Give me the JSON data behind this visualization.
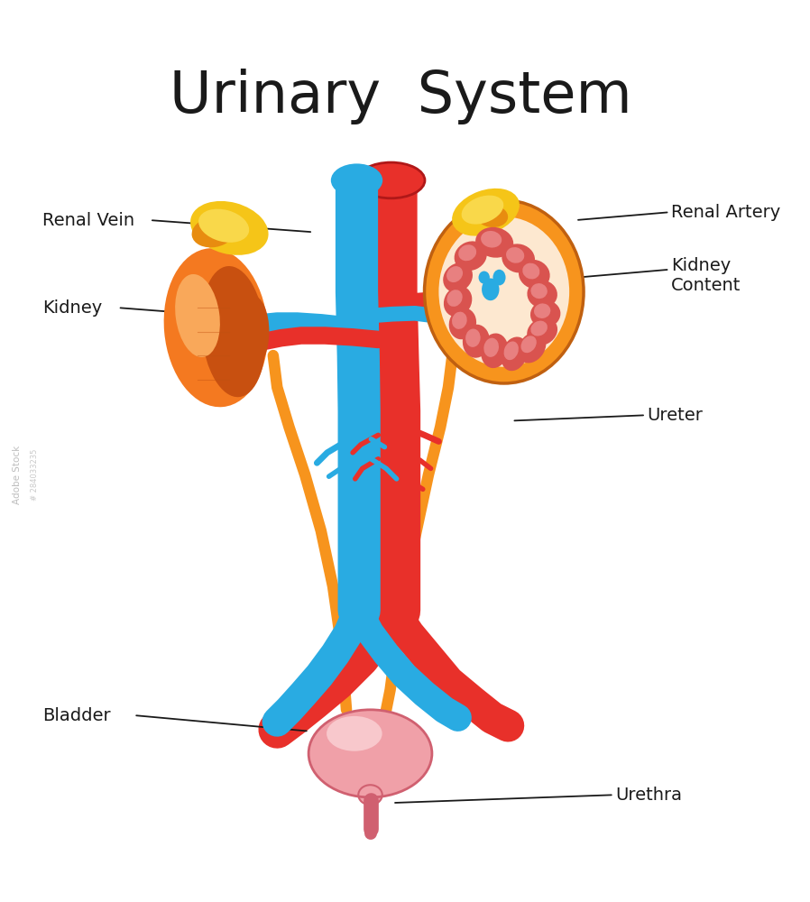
{
  "title": "Urinary  System",
  "title_fontsize": 46,
  "title_color": "#1a1a1a",
  "bg_color": "#ffffff",
  "labels": {
    "renal_vein": "Renal Vein",
    "renal_artery": "Renal Artery",
    "kidney": "Kidney",
    "kidney_content": "Kidney\nContent",
    "ureter": "Ureter",
    "bladder": "Bladder",
    "urethra": "Urethra"
  },
  "colors": {
    "aorta_red": "#e8302a",
    "aorta_red_dark": "#c0201a",
    "vena_cava_blue": "#29abe2",
    "vena_cava_blue_dark": "#1a80b0",
    "ureter_orange": "#f7941d",
    "ureter_orange_dark": "#d4700a",
    "kidney_orange": "#f47920",
    "kidney_orange_dark": "#c85010",
    "kidney_orange_light": "#f9a85a",
    "kidney_section_outer": "#f7941d",
    "kidney_section_inner": "#fde8d0",
    "kidney_section_tissue": "#d9534f",
    "kidney_section_tissue_light": "#e88080",
    "adrenal_yellow": "#f5c518",
    "adrenal_yellow_light": "#f9d84a",
    "adrenal_orange": "#e88c10",
    "bladder_pink": "#f0a0a8",
    "bladder_pink_light": "#f8c8cc",
    "bladder_outline": "#d06070",
    "urethra_pink": "#d06070",
    "line_color": "#1a1a1a",
    "text_color": "#1a1a1a",
    "red_small": "#e03030",
    "blue_small": "#2090d0"
  }
}
